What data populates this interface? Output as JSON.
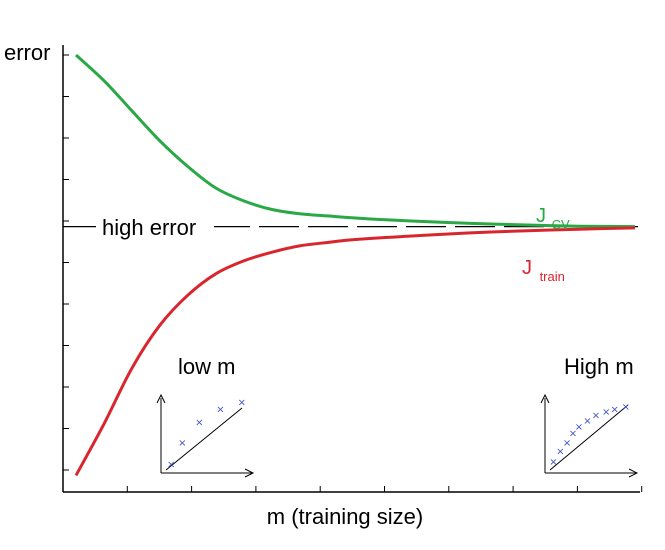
{
  "chart_data": {
    "type": "line",
    "title": "",
    "ylabel": "error",
    "xlabel": "m (training size)",
    "grid": false,
    "legend": "none",
    "reference_line": {
      "label": "high error",
      "y": 0.6,
      "style": "dashed"
    },
    "series": [
      {
        "name": "J_CV",
        "name_main": "J",
        "name_sub": "CV",
        "color": "#2aa845",
        "x": [
          0.0,
          0.05,
          0.1,
          0.15,
          0.2,
          0.25,
          0.3,
          0.35,
          0.4,
          0.45,
          0.5,
          0.6,
          0.7,
          0.8,
          0.9,
          1.0
        ],
        "y": [
          1.0,
          0.94,
          0.87,
          0.8,
          0.74,
          0.69,
          0.66,
          0.64,
          0.63,
          0.625,
          0.62,
          0.613,
          0.608,
          0.604,
          0.601,
          0.6
        ]
      },
      {
        "name": "J_train",
        "name_main": "J",
        "name_sub": "train",
        "color": "#d9262e",
        "x": [
          0.0,
          0.05,
          0.1,
          0.15,
          0.2,
          0.25,
          0.3,
          0.35,
          0.4,
          0.45,
          0.5,
          0.6,
          0.7,
          0.8,
          0.9,
          1.0
        ],
        "y": [
          0.02,
          0.14,
          0.27,
          0.37,
          0.44,
          0.49,
          0.52,
          0.54,
          0.555,
          0.563,
          0.57,
          0.578,
          0.585,
          0.59,
          0.594,
          0.597
        ]
      }
    ],
    "insets": [
      {
        "label": "low m",
        "points": [
          [
            0.12,
            0.12
          ],
          [
            0.25,
            0.42
          ],
          [
            0.45,
            0.7
          ],
          [
            0.7,
            0.88
          ],
          [
            0.95,
            0.98
          ]
        ]
      },
      {
        "label": "High m",
        "points": [
          [
            0.1,
            0.15
          ],
          [
            0.18,
            0.3
          ],
          [
            0.26,
            0.42
          ],
          [
            0.33,
            0.55
          ],
          [
            0.4,
            0.64
          ],
          [
            0.5,
            0.72
          ],
          [
            0.6,
            0.8
          ],
          [
            0.72,
            0.85
          ],
          [
            0.82,
            0.88
          ],
          [
            0.95,
            0.92
          ]
        ]
      }
    ],
    "colors": {
      "axis": "#000000",
      "inset_marker": "#3b4fc4"
    }
  }
}
